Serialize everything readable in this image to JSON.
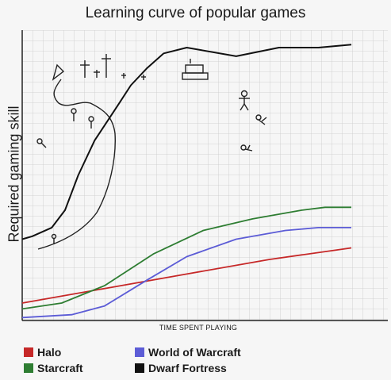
{
  "chart_data": {
    "type": "line",
    "title": "Learning curve of popular games",
    "xlabel": "TIME SPENT PLAYING",
    "ylabel": "Required gaming skill",
    "xlim": [
      0,
      100
    ],
    "ylim": [
      0,
      100
    ],
    "grid": true,
    "legend_position": "bottom",
    "series": [
      {
        "name": "Halo",
        "color": "#c62828",
        "x": [
          0,
          25,
          50,
          75,
          100
        ],
        "y": [
          6,
          11,
          16,
          21,
          25
        ]
      },
      {
        "name": "Starcraft",
        "color": "#2e7d32",
        "x": [
          0,
          12,
          25,
          40,
          55,
          70,
          85,
          92,
          100
        ],
        "y": [
          4,
          6,
          12,
          23,
          31,
          35,
          38,
          39,
          39
        ]
      },
      {
        "name": "World of Warcraft",
        "color": "#5c5cd6",
        "x": [
          0,
          15,
          25,
          38,
          50,
          65,
          80,
          90,
          100
        ],
        "y": [
          1,
          2,
          5,
          14,
          22,
          28,
          31,
          32,
          32
        ]
      },
      {
        "name": "Dwarf Fortress",
        "color": "#111111",
        "x": [
          0,
          3,
          9,
          13,
          17,
          22,
          29,
          33,
          38,
          43,
          50,
          65,
          78,
          90,
          100
        ],
        "y": [
          28,
          29,
          32,
          38,
          50,
          62,
          74,
          81,
          87,
          92,
          94,
          91,
          94,
          94,
          95
        ]
      }
    ]
  }
}
